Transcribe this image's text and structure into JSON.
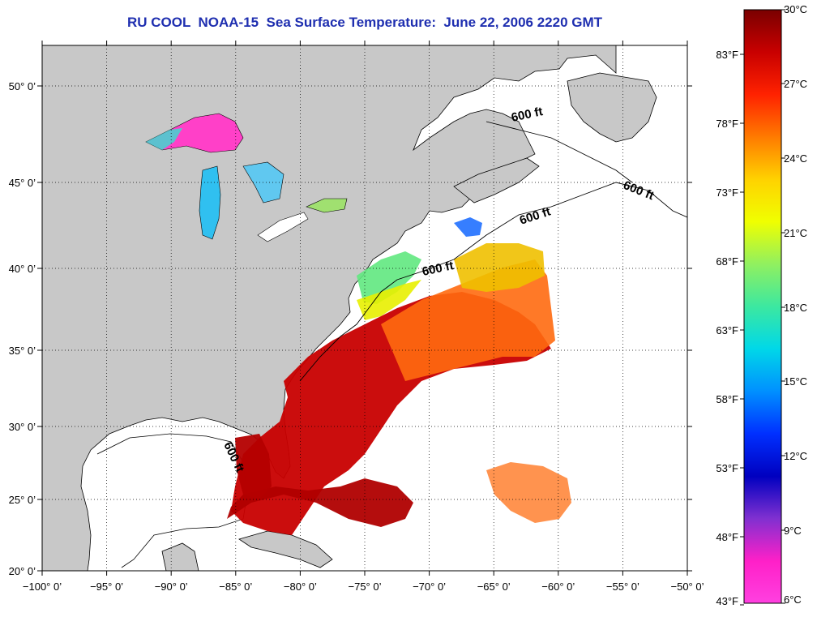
{
  "title": "RU COOL  NOAA-15  Sea Surface Temperature:  June 22, 2006 2220 GMT",
  "map": {
    "longitude_labels": [
      "−100° 0’",
      "−95° 0’",
      "−90° 0’",
      "−85° 0’",
      "−80° 0’",
      "−75° 0’",
      "−70° 0’",
      "−65° 0’",
      "−60° 0’",
      "−55° 0’",
      "−50° 0’"
    ],
    "latitude_labels": [
      "20° 0’",
      "25° 0’",
      "30° 0’",
      "35° 0’",
      "40° 0’",
      "45° 0’",
      "50° 0’"
    ],
    "longitude_range": [
      -100,
      -50
    ],
    "latitude_range": [
      20,
      52
    ],
    "isobath_label": "600 ft",
    "land_color": "#c8c8c8",
    "no_data_color": "#ffffff"
  },
  "colorbar": {
    "celsius_labels": [
      "30°C",
      "27°C",
      "24°C",
      "21°C",
      "18°C",
      "15°C",
      "12°C",
      "9°C",
      "6°C"
    ],
    "fahrenheit_labels": [
      "83°F",
      "78°F",
      "73°F",
      "68°F",
      "63°F",
      "58°F",
      "53°F",
      "48°F",
      "43°F"
    ],
    "range_celsius": [
      6,
      30
    ],
    "colors_top_to_bottom": [
      "#7a0000",
      "#c80000",
      "#ff2200",
      "#ff7a00",
      "#ffd200",
      "#f0ff00",
      "#90f060",
      "#3ce8a0",
      "#00d8e8",
      "#0090ff",
      "#0030ff",
      "#0000c0",
      "#8030d0",
      "#ff20c8",
      "#ff40e0"
    ]
  }
}
